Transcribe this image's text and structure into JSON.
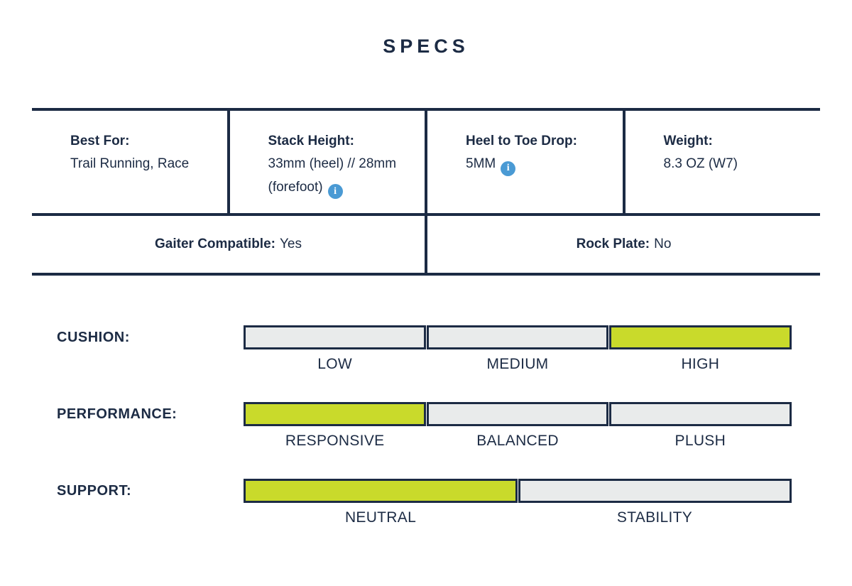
{
  "title": "SPECS",
  "colors": {
    "navy": "#1c2b44",
    "accent_green": "#c9da2b",
    "track_gray": "#e9ebeb",
    "info_blue": "#4a9ad4",
    "background": "#ffffff"
  },
  "info_icon_glyph": "i",
  "table": {
    "cells": [
      {
        "label": "Best For:",
        "value": "Trail Running, Race",
        "info": false
      },
      {
        "label": "Stack Height:",
        "value": "33mm (heel) // 28mm (forefoot)",
        "info": true
      },
      {
        "label": "Heel to Toe Drop:",
        "value": "5MM",
        "info": true
      },
      {
        "label": "Weight:",
        "value": "8.3 OZ (W7)",
        "info": false
      }
    ],
    "row2": [
      {
        "label": "Gaiter Compatible:",
        "value": "Yes"
      },
      {
        "label": "Rock Plate:",
        "value": "No"
      }
    ]
  },
  "sliders": [
    {
      "name": "CUSHION:",
      "options": [
        "LOW",
        "MEDIUM",
        "HIGH"
      ],
      "selected": 2,
      "selected_label": "HIGH"
    },
    {
      "name": "PERFORMANCE:",
      "options": [
        "RESPONSIVE",
        "BALANCED",
        "PLUSH"
      ],
      "selected": 0,
      "selected_label": "RESPONSIVE"
    },
    {
      "name": "SUPPORT:",
      "options": [
        "NEUTRAL",
        "STABILITY"
      ],
      "selected": 0,
      "selected_label": "NEUTRAL"
    }
  ]
}
